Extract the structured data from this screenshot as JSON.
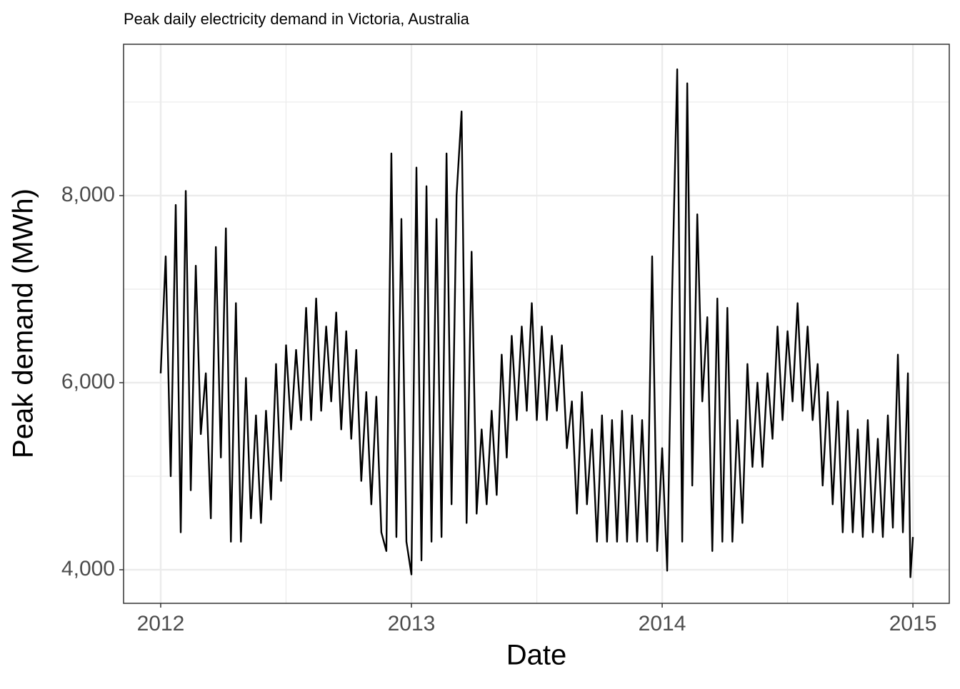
{
  "chart_data": {
    "type": "line",
    "title": "Peak daily electricity demand in Victoria, Australia",
    "x_label": "Date",
    "y_label": "Peak demand (MWh)",
    "xlim": [
      2011.852,
      2015.145
    ],
    "ylim": [
      3641,
      9618
    ],
    "xticks": [
      2012,
      2013,
      2014,
      2015
    ],
    "yticks": [
      {
        "value": 4000,
        "label": "4,000"
      },
      {
        "value": 6000,
        "label": "6,000"
      },
      {
        "value": 8000,
        "label": "8,000"
      }
    ],
    "grid": true,
    "minor_grid": true,
    "series": [
      {
        "color": "#000000",
        "x": [
          2012.0,
          2012.02,
          2012.04,
          2012.06,
          2012.08,
          2012.1,
          2012.12,
          2012.14,
          2012.16,
          2012.18,
          2012.2,
          2012.22,
          2012.24,
          2012.26,
          2012.28,
          2012.3,
          2012.32,
          2012.34,
          2012.36,
          2012.38,
          2012.4,
          2012.42,
          2012.44,
          2012.46,
          2012.48,
          2012.5,
          2012.52,
          2012.54,
          2012.56,
          2012.58,
          2012.6,
          2012.62,
          2012.64,
          2012.66,
          2012.68,
          2012.7,
          2012.72,
          2012.74,
          2012.76,
          2012.78,
          2012.8,
          2012.82,
          2012.84,
          2012.86,
          2012.88,
          2012.9,
          2012.92,
          2012.94,
          2012.96,
          2012.98,
          2013.0,
          2013.02,
          2013.04,
          2013.06,
          2013.08,
          2013.1,
          2013.12,
          2013.14,
          2013.16,
          2013.18,
          2013.2,
          2013.22,
          2013.24,
          2013.26,
          2013.28,
          2013.3,
          2013.32,
          2013.34,
          2013.36,
          2013.38,
          2013.4,
          2013.42,
          2013.44,
          2013.46,
          2013.48,
          2013.5,
          2013.52,
          2013.54,
          2013.56,
          2013.58,
          2013.6,
          2013.62,
          2013.64,
          2013.66,
          2013.68,
          2013.7,
          2013.72,
          2013.74,
          2013.76,
          2013.78,
          2013.8,
          2013.82,
          2013.84,
          2013.86,
          2013.88,
          2013.9,
          2013.92,
          2013.94,
          2013.96,
          2013.98,
          2014.0,
          2014.02,
          2014.04,
          2014.06,
          2014.08,
          2014.1,
          2014.12,
          2014.14,
          2014.16,
          2014.18,
          2014.2,
          2014.22,
          2014.24,
          2014.26,
          2014.28,
          2014.3,
          2014.32,
          2014.34,
          2014.36,
          2014.38,
          2014.4,
          2014.42,
          2014.44,
          2014.46,
          2014.48,
          2014.5,
          2014.52,
          2014.54,
          2014.56,
          2014.58,
          2014.6,
          2014.62,
          2014.64,
          2014.66,
          2014.68,
          2014.7,
          2014.72,
          2014.74,
          2014.76,
          2014.78,
          2014.8,
          2014.82,
          2014.84,
          2014.86,
          2014.88,
          2014.9,
          2014.92,
          2014.94,
          2014.96,
          2014.98,
          2014.99,
          2015.0
        ],
        "values": [
          6100,
          7350,
          5000,
          7900,
          4400,
          8050,
          4850,
          7250,
          5450,
          6100,
          4550,
          7450,
          5200,
          7650,
          4300,
          6850,
          4300,
          6050,
          4550,
          5650,
          4500,
          5700,
          4750,
          6200,
          4950,
          6400,
          5500,
          6350,
          5600,
          6800,
          5600,
          6900,
          5700,
          6600,
          5800,
          6750,
          5500,
          6550,
          5400,
          6350,
          4950,
          5900,
          4700,
          5850,
          4400,
          4200,
          8450,
          4350,
          7750,
          4300,
          3950,
          8300,
          4100,
          8100,
          4300,
          7750,
          4350,
          8450,
          4700,
          8000,
          8900,
          4500,
          7400,
          4600,
          5500,
          4700,
          5700,
          4800,
          6300,
          5200,
          6500,
          5600,
          6600,
          5700,
          6850,
          5600,
          6600,
          5600,
          6500,
          5700,
          6400,
          5300,
          5800,
          4600,
          5900,
          4700,
          5500,
          4300,
          5650,
          4300,
          5600,
          4300,
          5700,
          4300,
          5650,
          4300,
          5600,
          4300,
          7350,
          4200,
          5300,
          3990,
          7000,
          9350,
          4300,
          9200,
          4900,
          7800,
          5800,
          6700,
          4200,
          6900,
          4300,
          6800,
          4300,
          5600,
          4500,
          6200,
          5100,
          6000,
          5100,
          6100,
          5400,
          6600,
          5600,
          6550,
          5800,
          6850,
          5700,
          6600,
          5600,
          6200,
          4900,
          5900,
          4700,
          5800,
          4400,
          5700,
          4400,
          5500,
          4350,
          5600,
          4400,
          5400,
          4350,
          5650,
          4450,
          6300,
          4400,
          6100,
          3920,
          4350
        ]
      }
    ]
  }
}
